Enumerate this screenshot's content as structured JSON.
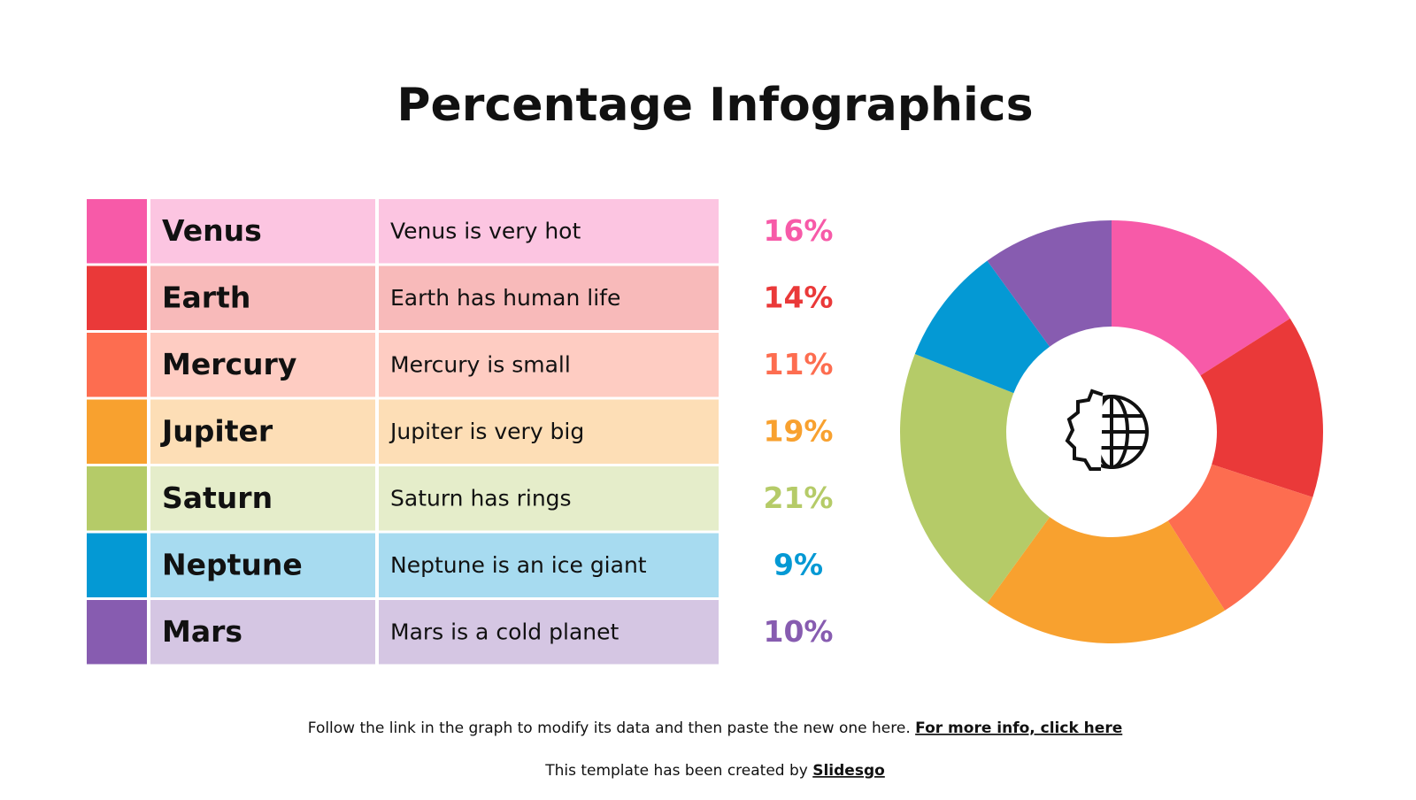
{
  "title": "Percentage Infographics",
  "descriptions": [
    "Venus is very hot",
    "Earth has human life",
    "Mercury is small",
    "Jupiter is very big",
    "Saturn has rings",
    "Neptune is an ice giant",
    "Mars is a cold planet"
  ],
  "footer": {
    "text": "Follow the link in the graph to modify its data and then paste the new one here.",
    "link": "For more info, click here",
    "credit": "This template has been created by",
    "credit_link": "Slidesgo"
  },
  "chart_data": {
    "type": "donut",
    "categories": [
      "Venus",
      "Earth",
      "Mercury",
      "Jupiter",
      "Saturn",
      "Neptune",
      "Mars"
    ],
    "values": [
      16,
      14,
      11,
      19,
      21,
      9,
      10
    ],
    "value_labels": [
      "16%",
      "14%",
      "11%",
      "19%",
      "21%",
      "9%",
      "10%"
    ],
    "colors": [
      "#f75aa8",
      "#ea3939",
      "#fd6d50",
      "#f8a12f",
      "#b5cb68",
      "#0499d4",
      "#875cb0"
    ]
  }
}
